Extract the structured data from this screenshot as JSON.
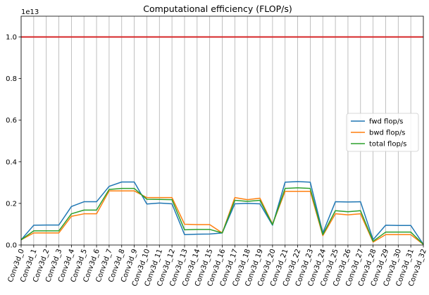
{
  "chart_data": {
    "type": "line",
    "title": "Computational efficiency (FLOP/s)",
    "y_exponent_label": "1e13",
    "ylim": [
      0,
      1.1
    ],
    "yticks": [
      "0.0",
      "0.2",
      "0.4",
      "0.6",
      "0.8",
      "1.0"
    ],
    "grid": "vertical",
    "legend_placement": "center-right",
    "reference_line": {
      "y": 1.0,
      "color": "#d62728"
    },
    "categories": [
      "Conv3d_0",
      "Conv3d_1",
      "Conv3d_2",
      "Conv3d_3",
      "Conv3d_4",
      "Conv3d_5",
      "Conv3d_6",
      "Conv3d_7",
      "Conv3d_8",
      "Conv3d_9",
      "Conv3d_10",
      "Conv3d_11",
      "Conv3d_12",
      "Conv3d_13",
      "Conv3d_14",
      "Conv3d_15",
      "Conv3d_16",
      "Conv3d_17",
      "Conv3d_18",
      "Conv3d_19",
      "Conv3d_20",
      "Conv3d_21",
      "Conv3d_22",
      "Conv3d_23",
      "Conv3d_24",
      "Conv3d_25",
      "Conv3d_26",
      "Conv3d_27",
      "Conv3d_28",
      "Conv3d_29",
      "Conv3d_30",
      "Conv3d_31",
      "Conv3d_32"
    ],
    "series": [
      {
        "name": "fwd flop/s",
        "color": "#1f77b4",
        "values": [
          0.025,
          0.095,
          0.096,
          0.096,
          0.185,
          0.208,
          0.208,
          0.282,
          0.303,
          0.303,
          0.197,
          0.202,
          0.198,
          0.05,
          0.052,
          0.053,
          0.058,
          0.198,
          0.2,
          0.198,
          0.095,
          0.302,
          0.305,
          0.302,
          0.058,
          0.208,
          0.207,
          0.208,
          0.026,
          0.095,
          0.094,
          0.094,
          0.003
        ]
      },
      {
        "name": "bwd flop/s",
        "color": "#ff7f0e",
        "values": [
          0.025,
          0.058,
          0.058,
          0.058,
          0.138,
          0.15,
          0.15,
          0.26,
          0.26,
          0.26,
          0.228,
          0.228,
          0.228,
          0.1,
          0.098,
          0.098,
          0.058,
          0.228,
          0.218,
          0.225,
          0.1,
          0.258,
          0.258,
          0.258,
          0.045,
          0.15,
          0.145,
          0.15,
          0.014,
          0.05,
          0.05,
          0.05,
          0.003
        ]
      },
      {
        "name": "total flop/s",
        "color": "#2ca02c",
        "values": [
          0.025,
          0.068,
          0.068,
          0.068,
          0.15,
          0.168,
          0.168,
          0.267,
          0.272,
          0.272,
          0.22,
          0.219,
          0.218,
          0.073,
          0.075,
          0.075,
          0.058,
          0.215,
          0.21,
          0.215,
          0.098,
          0.272,
          0.275,
          0.272,
          0.05,
          0.165,
          0.16,
          0.165,
          0.018,
          0.062,
          0.062,
          0.062,
          0.003
        ]
      }
    ]
  }
}
